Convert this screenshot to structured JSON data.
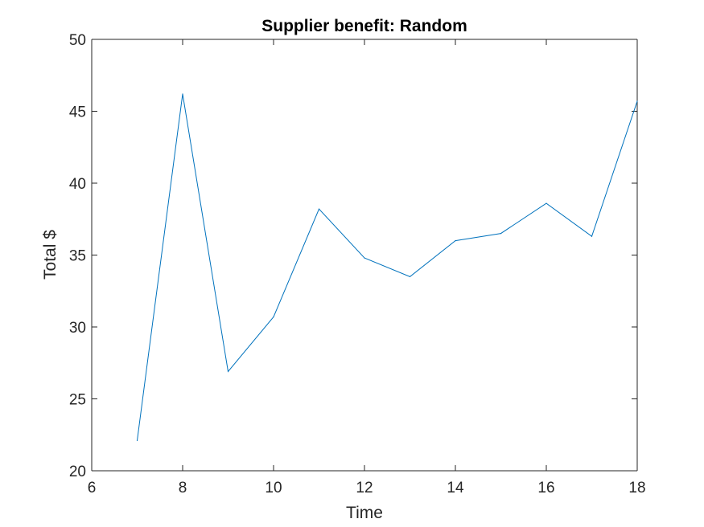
{
  "chart_data": {
    "type": "line",
    "title": "Supplier benefit: Random",
    "xlabel": "Time",
    "ylabel": "Total $",
    "xlim": [
      6,
      18
    ],
    "ylim": [
      20,
      50
    ],
    "xticks": [
      "6",
      "8",
      "10",
      "12",
      "14",
      "16",
      "18"
    ],
    "yticks": [
      "20",
      "25",
      "30",
      "35",
      "40",
      "45",
      "50"
    ],
    "grid": false,
    "series": [
      {
        "color": "#0072BD",
        "x": [
          7,
          8,
          9,
          10,
          11,
          12,
          13,
          14,
          15,
          16,
          17,
          18
        ],
        "y": [
          22.1,
          46.2,
          26.9,
          30.7,
          38.2,
          34.8,
          33.5,
          36.0,
          36.5,
          38.6,
          36.3,
          45.7
        ]
      }
    ]
  }
}
